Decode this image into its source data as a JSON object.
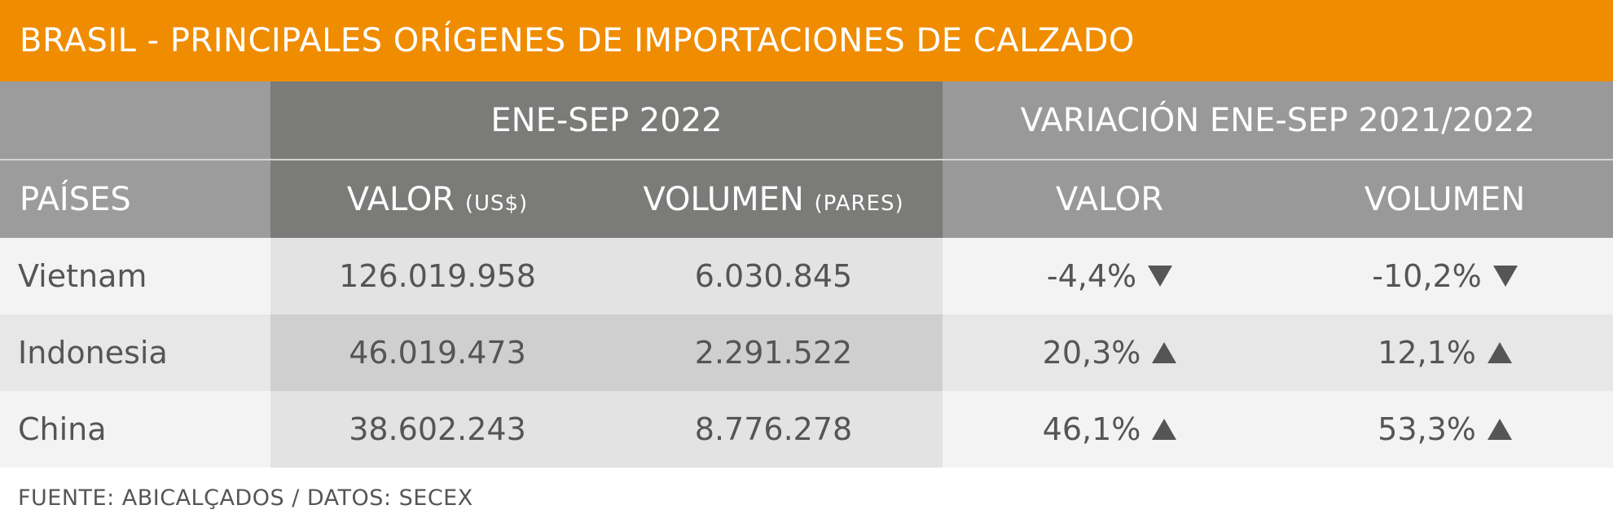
{
  "title": "BRASIL - PRINCIPALES ORÍGENES DE IMPORTACIONES DE CALZADO",
  "header": {
    "group1": "ENE-SEP 2022",
    "group2": "VARIACIÓN ENE-SEP 2021/2022",
    "countries": "PAÍSES",
    "value": "VALOR",
    "value_unit": "(US$)",
    "volume": "VOLUMEN",
    "volume_unit": "(PARES)",
    "var_value": "VALOR",
    "var_volume": "VOLUMEN"
  },
  "rows": [
    {
      "country": "Vietnam",
      "value": "126.019.958",
      "volume": "6.030.845",
      "var_value": "-4,4%",
      "var_value_dir": "down",
      "var_volume": "-10,2%",
      "var_volume_dir": "down"
    },
    {
      "country": "Indonesia",
      "value": "46.019.473",
      "volume": "2.291.522",
      "var_value": "20,3%",
      "var_value_dir": "up",
      "var_volume": "12,1%",
      "var_volume_dir": "up"
    },
    {
      "country": "China",
      "value": "38.602.243",
      "volume": "8.776.278",
      "var_value": "46,1%",
      "var_value_dir": "up",
      "var_volume": "53,3%",
      "var_volume_dir": "up"
    }
  ],
  "source": "FUENTE: ABICALÇADOS / DATOS: SECEX",
  "colors": {
    "title_bg": "#f08c00",
    "header_dark": "#7b7b79",
    "header_light": "#999999",
    "text": "#555555"
  },
  "icons": {
    "up": "triangle-up-icon",
    "down": "triangle-down-icon"
  }
}
